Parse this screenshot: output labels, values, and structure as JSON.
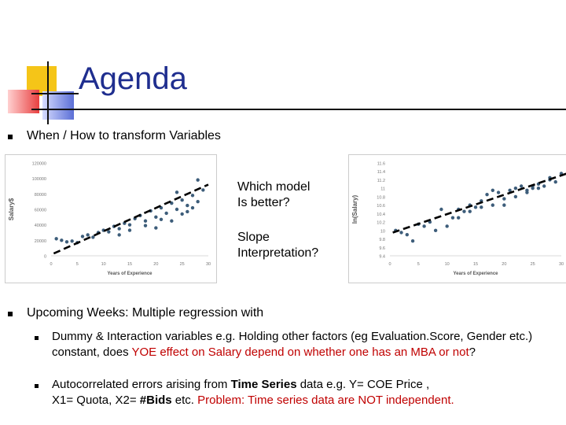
{
  "slide": {
    "title": "Agenda",
    "colors": {
      "title": "#1f2e8f",
      "accent_red": "#c00000",
      "logo_yellow": "#f5c518",
      "logo_red": "#e84040",
      "logo_blue": "#5b6fd6"
    }
  },
  "bullets": [
    {
      "text": "When / How to transform Variables"
    },
    {
      "text": "Upcoming Weeks: Multiple regression with"
    }
  ],
  "callouts": {
    "which_model_line1": "Which model",
    "which_model_line2": "Is better?",
    "slope_line1": "Slope",
    "slope_line2": "Interpretation?"
  },
  "sub_bullets": {
    "dummy": {
      "part1": "Dummy & Interaction variables e.g. Holding other factors (eg Evaluation.Score, Gender etc.)",
      "part2": "constant, does ",
      "red": "YOE effect on Salary depend on whether one has an MBA or not",
      "part3": "?"
    },
    "auto": {
      "part1": "Autocorrelated errors arising from ",
      "bold1": "Time Series",
      "part2": " data e.g. Y= ",
      "bold2": "COE Price",
      "part3": " ,",
      "line2a": "X1= ",
      "bold3": "Quota",
      "line2b": ", X2= ",
      "bold4": "#Bids",
      "line2c": " etc. ",
      "red": "Problem: Time series data are NOT independent."
    }
  },
  "chart_data": [
    {
      "type": "scatter",
      "title": "",
      "xlabel": "Years of Experience",
      "ylabel": "Salary$",
      "xlim": [
        0,
        30
      ],
      "ylim": [
        0,
        120000
      ],
      "x_ticks": [
        "0",
        "5",
        "10",
        "15",
        "20",
        "25",
        "30"
      ],
      "x_tick_values": [
        0,
        5,
        10,
        15,
        20,
        25,
        30
      ],
      "y_ticks": [
        "0",
        "20000",
        "40000",
        "60000",
        "80000",
        "100000",
        "120000"
      ],
      "y_tick_values": [
        0,
        20000,
        40000,
        60000,
        80000,
        100000,
        120000
      ],
      "trend": {
        "x": [
          0.5,
          30
        ],
        "y": [
          3000,
          92000
        ]
      },
      "points": [
        [
          1,
          22000
        ],
        [
          2,
          20000
        ],
        [
          3,
          18000
        ],
        [
          4,
          19000
        ],
        [
          5,
          17000
        ],
        [
          6,
          25000
        ],
        [
          7,
          27000
        ],
        [
          8,
          24000
        ],
        [
          9,
          30000
        ],
        [
          10,
          33000
        ],
        [
          11,
          31000
        ],
        [
          12,
          38000
        ],
        [
          13,
          35000
        ],
        [
          14,
          42000
        ],
        [
          15,
          40000
        ],
        [
          16,
          48000
        ],
        [
          17,
          52000
        ],
        [
          18,
          45000
        ],
        [
          19,
          58000
        ],
        [
          20,
          50000
        ],
        [
          20,
          36000
        ],
        [
          21,
          62000
        ],
        [
          22,
          55000
        ],
        [
          23,
          68000
        ],
        [
          24,
          60000
        ],
        [
          25,
          72000
        ],
        [
          26,
          65000
        ],
        [
          27,
          78000
        ],
        [
          28,
          70000
        ],
        [
          29,
          85000
        ],
        [
          23,
          45000
        ],
        [
          26,
          57000
        ],
        [
          18,
          39000
        ],
        [
          15,
          33000
        ],
        [
          24,
          82000
        ],
        [
          27,
          62000
        ],
        [
          21,
          47000
        ],
        [
          13,
          27000
        ],
        [
          28,
          98000
        ],
        [
          25,
          54000
        ]
      ]
    },
    {
      "type": "scatter",
      "title": "",
      "xlabel": "Years of Experience",
      "ylabel": "ln(Salary)",
      "xlim": [
        0,
        30
      ],
      "ylim": [
        9.4,
        11.6
      ],
      "x_ticks": [
        "0",
        "5",
        "10",
        "15",
        "20",
        "25",
        "30"
      ],
      "x_tick_values": [
        0,
        5,
        10,
        15,
        20,
        25,
        30
      ],
      "y_ticks": [
        "9.4",
        "9.6",
        "9.8",
        "10",
        "10.2",
        "10.4",
        "10.6",
        "10.8",
        "11",
        "11.2",
        "11.4",
        "11.6"
      ],
      "y_tick_values": [
        9.4,
        9.6,
        9.8,
        10,
        10.2,
        10.4,
        10.6,
        10.8,
        11,
        11.2,
        11.4,
        11.6
      ],
      "trend": {
        "x": [
          0.5,
          31
        ],
        "y": [
          9.95,
          11.35
        ]
      },
      "points": [
        [
          1,
          10.0
        ],
        [
          2,
          9.95
        ],
        [
          3,
          9.9
        ],
        [
          4,
          9.75
        ],
        [
          5,
          10.15
        ],
        [
          6,
          10.1
        ],
        [
          7,
          10.2
        ],
        [
          8,
          10.0
        ],
        [
          9,
          10.5
        ],
        [
          10,
          10.1
        ],
        [
          11,
          10.3
        ],
        [
          12,
          10.5
        ],
        [
          13,
          10.45
        ],
        [
          14,
          10.6
        ],
        [
          15,
          10.55
        ],
        [
          16,
          10.7
        ],
        [
          17,
          10.85
        ],
        [
          18,
          10.6
        ],
        [
          19,
          10.9
        ],
        [
          20,
          10.75
        ],
        [
          21,
          10.95
        ],
        [
          22,
          10.8
        ],
        [
          23,
          11.05
        ],
        [
          24,
          10.9
        ],
        [
          25,
          11.0
        ],
        [
          26,
          11.1
        ],
        [
          27,
          11.05
        ],
        [
          28,
          11.2
        ],
        [
          29,
          11.15
        ],
        [
          30,
          11.35
        ],
        [
          20,
          10.6
        ],
        [
          22,
          11.0
        ],
        [
          24,
          10.95
        ],
        [
          26,
          11.0
        ],
        [
          18,
          10.95
        ],
        [
          16,
          10.55
        ],
        [
          14,
          10.45
        ],
        [
          12,
          10.3
        ],
        [
          28,
          11.25
        ],
        [
          25,
          11.05
        ]
      ]
    }
  ]
}
